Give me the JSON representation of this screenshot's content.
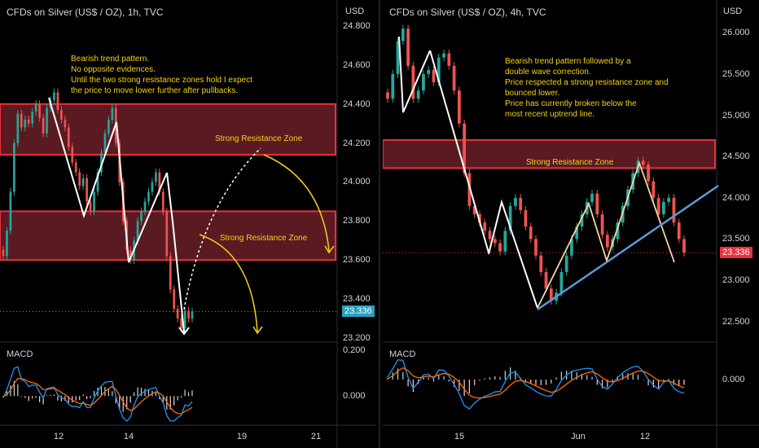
{
  "left": {
    "title": "CFDs on Silver (US$ / OZ), 1h, TVC",
    "currency": "USD",
    "price_ticks": [
      "24.800",
      "24.600",
      "24.400",
      "24.200",
      "24.000",
      "23.800",
      "23.600",
      "23.400",
      "23.200"
    ],
    "current_price": "23.336",
    "macd_label": "MACD",
    "macd_ticks": [
      "0.200",
      "0.000"
    ],
    "x_ticks": [
      "12",
      "14",
      "19",
      "21"
    ],
    "note": "Bearish trend pattern.\nNo opposite evidences.\nUntil the two strong resistance zones hold I expect\nthe price to move lower further after pullbacks.",
    "zones": [
      {
        "label": "Strong Resistance Zone",
        "from": 24.14,
        "to": 24.4
      },
      {
        "label": "Strong Resistance Zone",
        "from": 23.6,
        "to": 23.85
      }
    ]
  },
  "right": {
    "title": "CFDs on Silver (US$ / OZ), 4h, TVC",
    "currency": "USD",
    "price_ticks": [
      "26.000",
      "25.500",
      "25.000",
      "24.500",
      "24.000",
      "23.500",
      "23.000",
      "22.500"
    ],
    "current_price": "23.336",
    "macd_label": "MACD",
    "macd_ticks": [
      "0.000"
    ],
    "x_ticks": [
      "15",
      "Jun",
      "12"
    ],
    "note": "Bearish trend pattern followed by a\ndouble wave correction.\nPrice respected a strong resistance zone and\nbounced lower.\nPrice has currently broken below the\nmost recent uptrend line.",
    "zones": [
      {
        "label": "Strong Resistance Zone",
        "from": 24.36,
        "to": 24.7
      }
    ]
  },
  "colors": {
    "up": "#26a69a",
    "down": "#ef5350",
    "zone_fill": "#5a1a22",
    "zone_border": "#e8323e",
    "trendline": "#5b9bd5",
    "macd": "#2196f3",
    "signal": "#ff6d00",
    "annotation": "#f4d21a",
    "current_tag_left": "#2aa1c0",
    "current_tag_right": "#e8323e"
  },
  "chart_data": [
    {
      "type": "candlestick",
      "title": "CFDs on Silver (US$ / OZ), 1h, TVC",
      "ylabel": "USD",
      "ylim": [
        23.2,
        24.85
      ],
      "x_ticks": [
        "12",
        "14",
        "19",
        "21"
      ],
      "closes": [
        23.62,
        23.75,
        23.95,
        24.2,
        24.35,
        24.28,
        24.32,
        24.3,
        24.36,
        24.4,
        24.33,
        24.25,
        24.38,
        24.42,
        24.46,
        24.37,
        24.32,
        24.28,
        24.18,
        24.1,
        24.05,
        23.98,
        24.02,
        23.9,
        23.85,
        23.95,
        24.05,
        24.15,
        24.25,
        24.32,
        24.38,
        24.2,
        24.0,
        23.8,
        23.65,
        23.6,
        23.7,
        23.8,
        23.85,
        23.9,
        23.95,
        24.0,
        24.05,
        23.95,
        23.85,
        23.62,
        23.45,
        23.35,
        23.3,
        23.25,
        23.34,
        23.3,
        23.336
      ],
      "current_price": 23.336,
      "macd": {
        "ylim": [
          -0.12,
          0.2
        ],
        "ticks": [
          0.2,
          0.0
        ]
      }
    },
    {
      "type": "candlestick",
      "title": "CFDs on Silver (US$ / OZ), 4h, TVC",
      "ylabel": "USD",
      "ylim": [
        22.3,
        26.2
      ],
      "x_ticks": [
        "15",
        "Jun",
        "12"
      ],
      "closes": [
        25.2,
        25.5,
        25.9,
        26.05,
        25.6,
        25.2,
        25.3,
        25.5,
        25.55,
        25.4,
        25.7,
        25.75,
        25.6,
        25.3,
        24.9,
        24.3,
        23.9,
        23.8,
        23.7,
        23.6,
        23.5,
        23.45,
        23.35,
        23.6,
        23.9,
        24.0,
        23.85,
        23.65,
        23.5,
        23.3,
        23.1,
        22.9,
        22.75,
        22.85,
        23.1,
        23.3,
        23.5,
        23.65,
        23.8,
        23.95,
        24.05,
        23.8,
        23.55,
        23.4,
        23.5,
        23.7,
        23.9,
        24.1,
        24.3,
        24.45,
        24.4,
        24.2,
        24.0,
        23.8,
        23.95,
        24.0,
        23.7,
        23.5,
        23.336
      ],
      "current_price": 23.336,
      "macd": {
        "ylim": [
          -0.45,
          0.3
        ],
        "ticks": [
          0.0
        ]
      }
    }
  ]
}
